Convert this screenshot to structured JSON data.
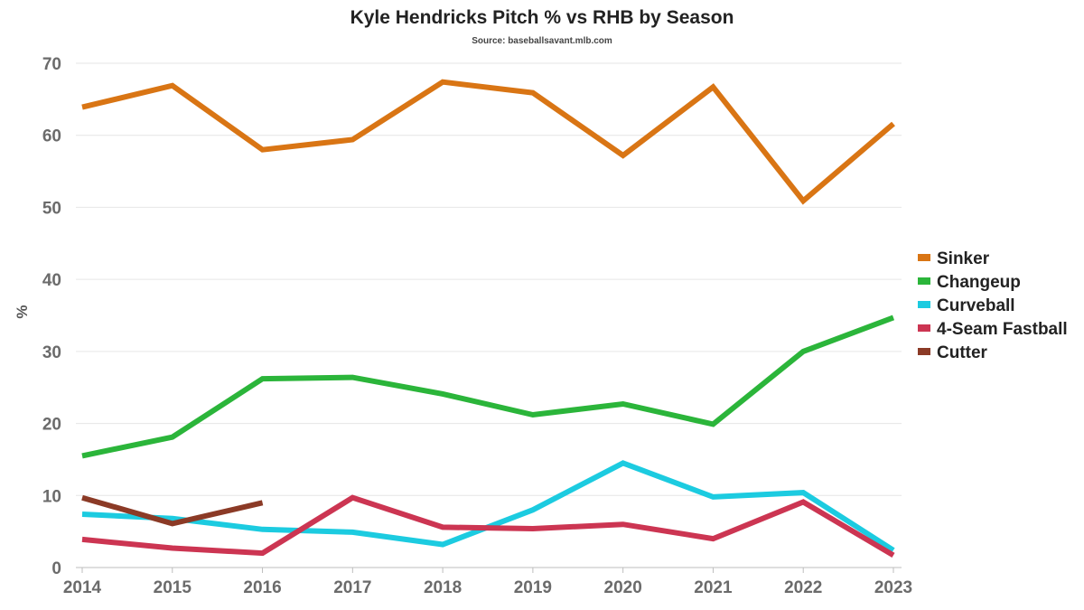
{
  "chart_data": {
    "type": "line",
    "title": "Kyle Hendricks Pitch % vs RHB by Season",
    "subtitle": "Source: baseballsavant.mlb.com",
    "xlabel": "",
    "ylabel": "%",
    "x": [
      2014,
      2015,
      2016,
      2017,
      2018,
      2019,
      2020,
      2021,
      2022,
      2023
    ],
    "ylim": [
      0,
      70
    ],
    "yticks": [
      0,
      10,
      20,
      30,
      40,
      50,
      60,
      70
    ],
    "grid": true,
    "legend_position": "right",
    "series": [
      {
        "name": "Sinker",
        "color": "#d97514",
        "values": [
          63.9,
          66.9,
          58.0,
          59.4,
          67.4,
          65.9,
          57.2,
          66.7,
          50.9,
          61.6
        ]
      },
      {
        "name": "Changeup",
        "color": "#2bb53a",
        "values": [
          15.5,
          18.1,
          26.2,
          26.4,
          24.1,
          21.2,
          22.7,
          19.9,
          30.0,
          34.7
        ]
      },
      {
        "name": "Curveball",
        "color": "#1ccbe0",
        "values": [
          7.4,
          6.8,
          5.3,
          4.9,
          3.2,
          8.0,
          14.5,
          9.8,
          10.4,
          2.4
        ]
      },
      {
        "name": "4-Seam Fastball",
        "color": "#cc3552",
        "values": [
          3.9,
          2.7,
          2.0,
          9.7,
          5.6,
          5.4,
          6.0,
          4.0,
          9.1,
          1.7
        ]
      },
      {
        "name": "Cutter",
        "color": "#8b3a26",
        "values": [
          9.7,
          6.1,
          9.0,
          null,
          null,
          null,
          null,
          null,
          null,
          null
        ]
      }
    ]
  }
}
